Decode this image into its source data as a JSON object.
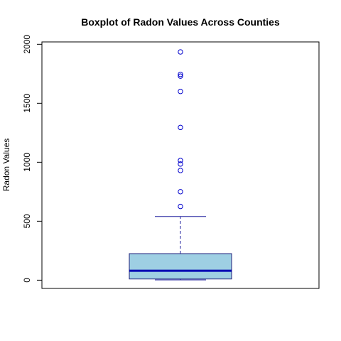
{
  "chart_data": {
    "type": "boxplot",
    "title": "Boxplot of Radon Values Across Counties",
    "xlabel": "",
    "ylabel": "Radon Values",
    "ylim": [
      -70,
      2020
    ],
    "yticks": [
      0,
      500,
      1000,
      1500,
      2000
    ],
    "ytick_labels": [
      "0",
      "500",
      "1000",
      "1500",
      "2000"
    ],
    "box": {
      "min": 2,
      "q1": 10,
      "median": 80,
      "q3": 225,
      "whisker_high": 540
    },
    "outliers": [
      625,
      750,
      930,
      985,
      1015,
      1295,
      1600,
      1730,
      1745,
      1935
    ],
    "grid": false,
    "legend": "none"
  },
  "colors": {
    "box_fill": "#9ecfe3",
    "box_border": "#1f1f7a",
    "median": "#0000b3",
    "whisker": "#1f1f9e",
    "outlier": "#0000cc",
    "frame": "#000000"
  }
}
